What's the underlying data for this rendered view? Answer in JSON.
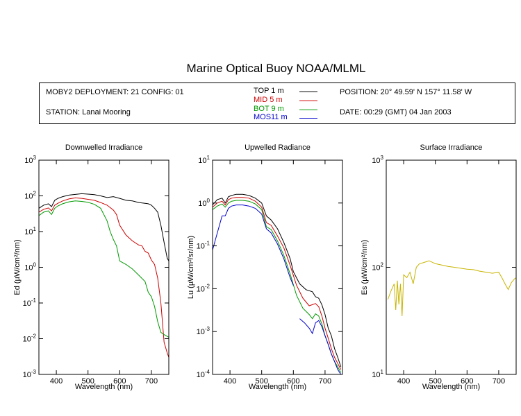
{
  "title": "Marine Optical Buoy NOAA/MLML",
  "info": {
    "deployment": "MOBY2 DEPLOYMENT: 21 CONFIG: 01",
    "station": "STATION: Lanai Mooring",
    "position": "POSITION: 20° 49.59' N   157° 11.58' W",
    "date": "DATE: 00:29 (GMT) 04 Jan 2003"
  },
  "legend": [
    {
      "label": "TOP  1  m",
      "color": "#000000"
    },
    {
      "label": "MID  5  m",
      "color": "#cc0000"
    },
    {
      "label": "BOT  9  m",
      "color": "#009900"
    },
    {
      "label": "MOS11  m",
      "color": "#0000cc"
    }
  ],
  "chart_data": [
    {
      "type": "line",
      "title": "Downwelled Irradiance",
      "xlabel": "Wavelength (nm)",
      "ylabel": "Ed  (µW/cm²/nm)",
      "xlim": [
        345,
        755
      ],
      "ylim": [
        0.001,
        1000
      ],
      "yscale": "log",
      "xticks": [
        400,
        500,
        600,
        700
      ],
      "yticks": [
        {
          "base": "10",
          "exp": "-3"
        },
        {
          "base": "10",
          "exp": "-2"
        },
        {
          "base": "10",
          "exp": "-1"
        },
        {
          "base": "10",
          "exp": "0"
        },
        {
          "base": "10",
          "exp": "1"
        },
        {
          "base": "10",
          "exp": "2"
        },
        {
          "base": "10",
          "exp": "3"
        }
      ],
      "series": [
        {
          "name": "TOP",
          "color": "#000000",
          "x": [
            345,
            360,
            375,
            385,
            395,
            405,
            420,
            440,
            460,
            480,
            500,
            520,
            540,
            560,
            580,
            600,
            620,
            640,
            660,
            680,
            690,
            700,
            710,
            720,
            730,
            740,
            750,
            755
          ],
          "y": [
            45,
            55,
            60,
            50,
            75,
            85,
            95,
            105,
            110,
            115,
            112,
            108,
            100,
            90,
            95,
            85,
            75,
            72,
            65,
            62,
            60,
            55,
            45,
            35,
            15,
            5,
            1.8,
            1.5
          ]
        },
        {
          "name": "MID",
          "color": "#cc0000",
          "x": [
            345,
            360,
            375,
            385,
            395,
            405,
            420,
            440,
            460,
            480,
            500,
            520,
            540,
            560,
            580,
            590,
            600,
            620,
            640,
            660,
            670,
            680,
            690,
            700,
            710,
            720,
            730,
            740,
            750,
            755
          ],
          "y": [
            35,
            42,
            46,
            38,
            55,
            62,
            72,
            82,
            88,
            85,
            80,
            75,
            65,
            55,
            40,
            30,
            15,
            8,
            5.5,
            4.2,
            4.0,
            2.8,
            2.5,
            1.6,
            1.2,
            0.5,
            0.1,
            0.008,
            0.004,
            0.003
          ]
        },
        {
          "name": "BOT",
          "color": "#009900",
          "x": [
            345,
            360,
            375,
            385,
            395,
            405,
            420,
            440,
            460,
            480,
            500,
            520,
            540,
            560,
            570,
            580,
            590,
            600,
            620,
            640,
            660,
            680,
            690,
            700,
            710,
            720,
            730,
            740,
            755
          ],
          "y": [
            28,
            35,
            38,
            30,
            45,
            52,
            60,
            68,
            72,
            70,
            66,
            58,
            45,
            20,
            10,
            6,
            4,
            1.5,
            1.2,
            0.9,
            0.6,
            0.4,
            0.2,
            0.15,
            0.08,
            0.03,
            0.015,
            0.013,
            0.011
          ]
        }
      ]
    },
    {
      "type": "line",
      "title": "Upwelled Radiance",
      "xlabel": "Wavelength (nm)",
      "ylabel": "Lu  (µW/cm²/sr/nm)",
      "xlim": [
        345,
        755
      ],
      "ylim": [
        0.0001,
        10
      ],
      "yscale": "log",
      "xticks": [
        400,
        500,
        600,
        700
      ],
      "yticks": [
        {
          "base": "10",
          "exp": "-4"
        },
        {
          "base": "10",
          "exp": "-3"
        },
        {
          "base": "10",
          "exp": "-2"
        },
        {
          "base": "10",
          "exp": "-1"
        },
        {
          "base": "10",
          "exp": "0"
        },
        {
          "base": "10",
          "exp": "1"
        }
      ],
      "series": [
        {
          "name": "TOP",
          "color": "#000000",
          "x": [
            345,
            360,
            375,
            385,
            395,
            405,
            420,
            440,
            460,
            480,
            500,
            515,
            530,
            550,
            570,
            590,
            600,
            620,
            640,
            660,
            670,
            680,
            690,
            700,
            710,
            720,
            730,
            740,
            750
          ],
          "y": [
            0.9,
            1.2,
            1.3,
            1.0,
            1.4,
            1.5,
            1.6,
            1.6,
            1.5,
            1.3,
            1.0,
            0.5,
            0.4,
            0.25,
            0.12,
            0.05,
            0.025,
            0.013,
            0.0095,
            0.0085,
            0.0065,
            0.006,
            0.0042,
            0.0025,
            0.0012,
            0.0008,
            0.0004,
            0.00025,
            0.00015
          ]
        },
        {
          "name": "MID",
          "color": "#cc0000",
          "x": [
            345,
            360,
            375,
            385,
            395,
            405,
            420,
            440,
            460,
            480,
            500,
            515,
            530,
            550,
            570,
            590,
            610,
            630,
            650,
            670,
            680,
            690,
            700,
            710,
            720,
            730,
            740,
            750
          ],
          "y": [
            0.8,
            1.0,
            1.1,
            0.9,
            1.2,
            1.3,
            1.35,
            1.35,
            1.3,
            1.1,
            0.8,
            0.35,
            0.3,
            0.17,
            0.09,
            0.035,
            0.012,
            0.006,
            0.004,
            0.0045,
            0.0038,
            0.0023,
            0.0012,
            0.0007,
            0.0004,
            0.00025,
            0.00018,
            0.00013
          ]
        },
        {
          "name": "BOT",
          "color": "#009900",
          "x": [
            345,
            360,
            375,
            385,
            395,
            405,
            420,
            440,
            460,
            480,
            500,
            515,
            530,
            550,
            570,
            590,
            610,
            630,
            650,
            660,
            670,
            680,
            690,
            700,
            710,
            720,
            730,
            740,
            750
          ],
          "y": [
            0.7,
            0.85,
            0.95,
            0.8,
            1.0,
            1.1,
            1.15,
            1.15,
            1.1,
            0.95,
            0.7,
            0.28,
            0.24,
            0.13,
            0.06,
            0.022,
            0.007,
            0.0035,
            0.0025,
            0.002,
            0.0026,
            0.0023,
            0.0015,
            0.0008,
            0.0005,
            0.0003,
            0.0002,
            0.00015,
            0.00011
          ]
        },
        {
          "name": "MOS",
          "color": "#0000cc",
          "x": [
            345,
            360,
            375,
            385,
            395,
            405,
            420,
            440,
            460,
            480,
            500,
            515,
            530,
            550,
            570,
            590,
            600
          ],
          "y": [
            0.08,
            0.2,
            0.5,
            0.5,
            0.75,
            0.85,
            0.9,
            0.9,
            0.85,
            0.75,
            0.55,
            0.25,
            0.2,
            0.11,
            0.05,
            0.018,
            0.012
          ]
        },
        {
          "name": "MOS",
          "color": "#0000cc",
          "x": [
            620,
            635,
            650,
            660,
            670,
            680,
            690,
            700,
            710,
            720,
            730,
            740,
            750
          ],
          "y": [
            0.002,
            0.0016,
            0.0012,
            0.0009,
            0.0016,
            0.0018,
            0.0013,
            0.0008,
            0.0005,
            0.0003,
            0.0002,
            0.00013,
            0.0001
          ]
        }
      ]
    },
    {
      "type": "line",
      "title": "Surface Irradiance",
      "xlabel": "Wavelength (nm)",
      "ylabel": "Es  (µW/cm²/nm)",
      "xlim": [
        345,
        755
      ],
      "ylim": [
        10,
        1000
      ],
      "yscale": "log",
      "xticks": [
        400,
        500,
        600,
        700
      ],
      "yticks": [
        {
          "base": "10",
          "exp": "1"
        },
        {
          "base": "10",
          "exp": "2"
        },
        {
          "base": "10",
          "exp": "3"
        }
      ],
      "series": [
        {
          "name": "Es",
          "color": "#c8b400",
          "x": [
            350,
            360,
            370,
            375,
            380,
            385,
            390,
            395,
            400,
            410,
            420,
            430,
            440,
            450,
            460,
            480,
            500,
            520,
            540,
            560,
            580,
            600,
            620,
            640,
            660,
            680,
            700,
            710,
            720,
            730,
            740,
            750,
            755
          ],
          "y": [
            50,
            60,
            70,
            40,
            75,
            45,
            70,
            35,
            85,
            80,
            90,
            70,
            100,
            108,
            110,
            115,
            108,
            105,
            102,
            100,
            98,
            96,
            95,
            92,
            90,
            88,
            90,
            80,
            70,
            62,
            72,
            78,
            80
          ]
        }
      ]
    }
  ]
}
